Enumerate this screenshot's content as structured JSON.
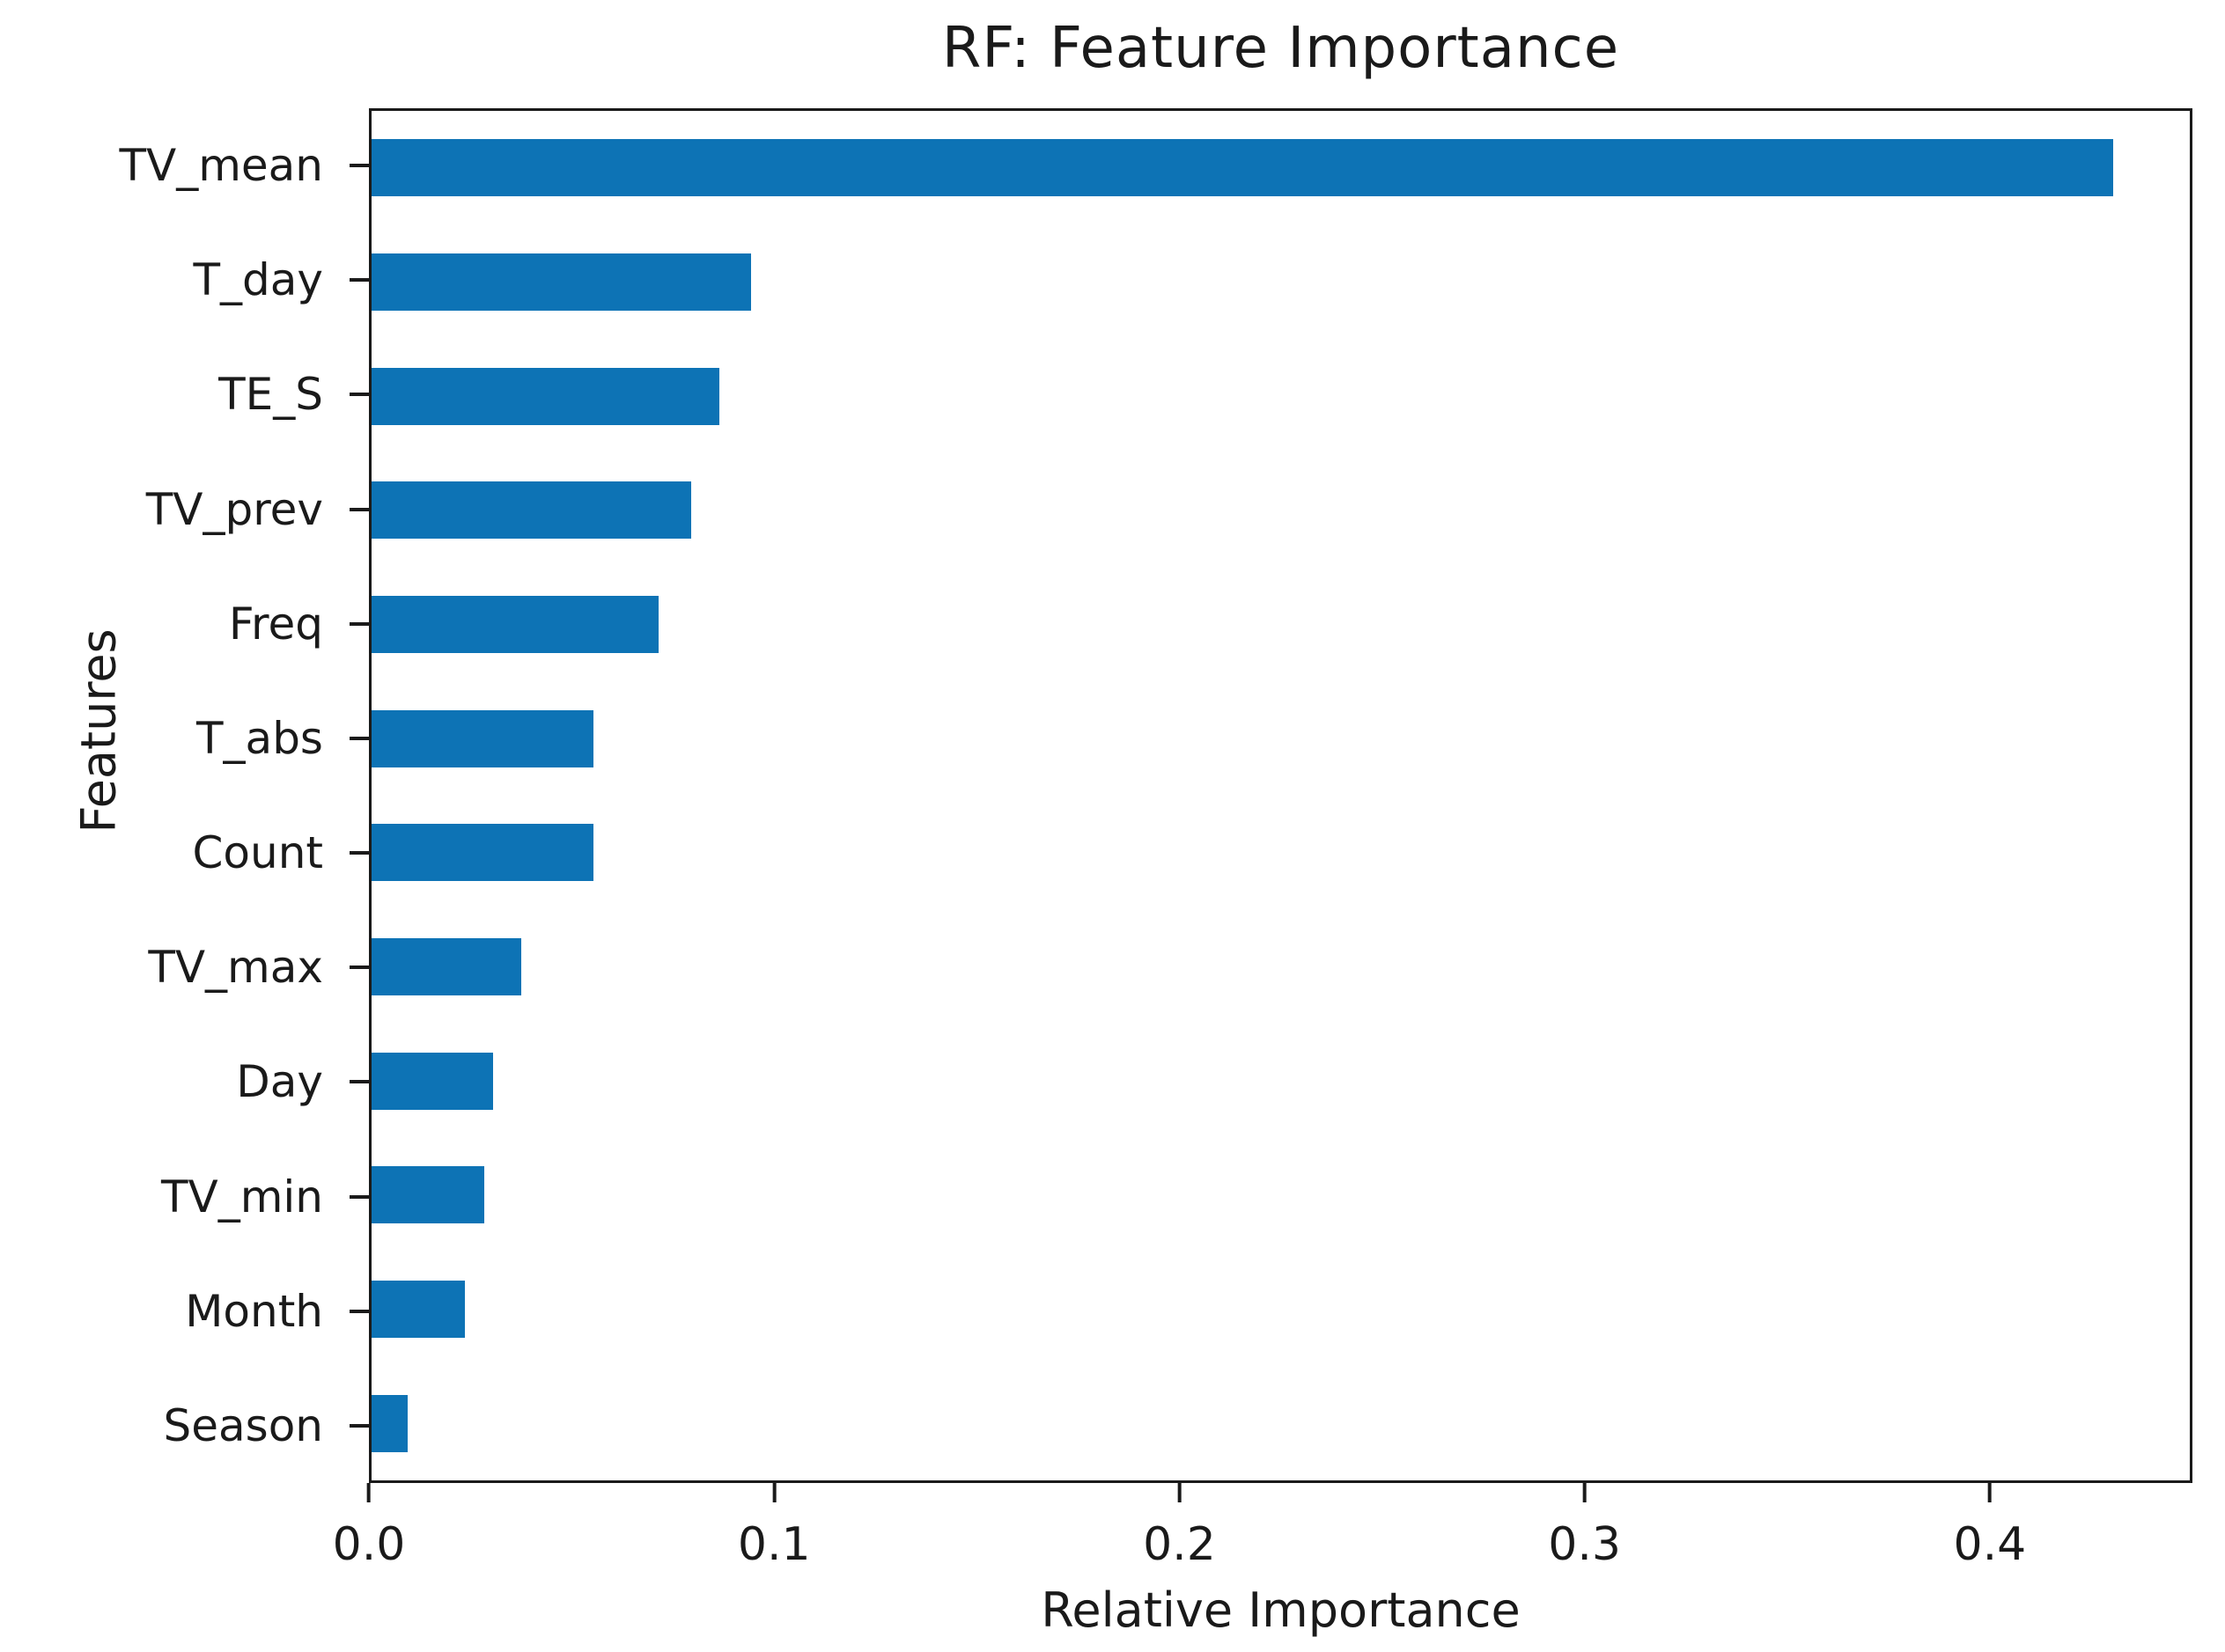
{
  "figure": {
    "title": "RF: Feature Importance",
    "xlabel": "Relative Importance",
    "ylabel": "Features",
    "bar_color": "#0d73b5",
    "text_color": "#1a1a1a",
    "background_color": "#ffffff"
  },
  "chart_data": {
    "type": "bar",
    "orientation": "horizontal",
    "title": "RF: Feature Importance",
    "xlabel": "Relative Importance",
    "ylabel": "Features",
    "categories": [
      "TV_mean",
      "T_day",
      "TE_S",
      "TV_prev",
      "Freq",
      "T_abs",
      "Count",
      "TV_max",
      "Day",
      "TV_min",
      "Month",
      "Season"
    ],
    "values": [
      0.431,
      0.094,
      0.086,
      0.079,
      0.071,
      0.055,
      0.055,
      0.037,
      0.03,
      0.028,
      0.023,
      0.009
    ],
    "xlim": [
      0,
      0.45
    ],
    "xtick_labels": [
      "0.0",
      "0.1",
      "0.2",
      "0.3",
      "0.4"
    ],
    "xtick_values": [
      0.0,
      0.1,
      0.2,
      0.3,
      0.4
    ],
    "grid": false,
    "legend_position": "none",
    "bar_fraction_of_slot": 0.5
  }
}
